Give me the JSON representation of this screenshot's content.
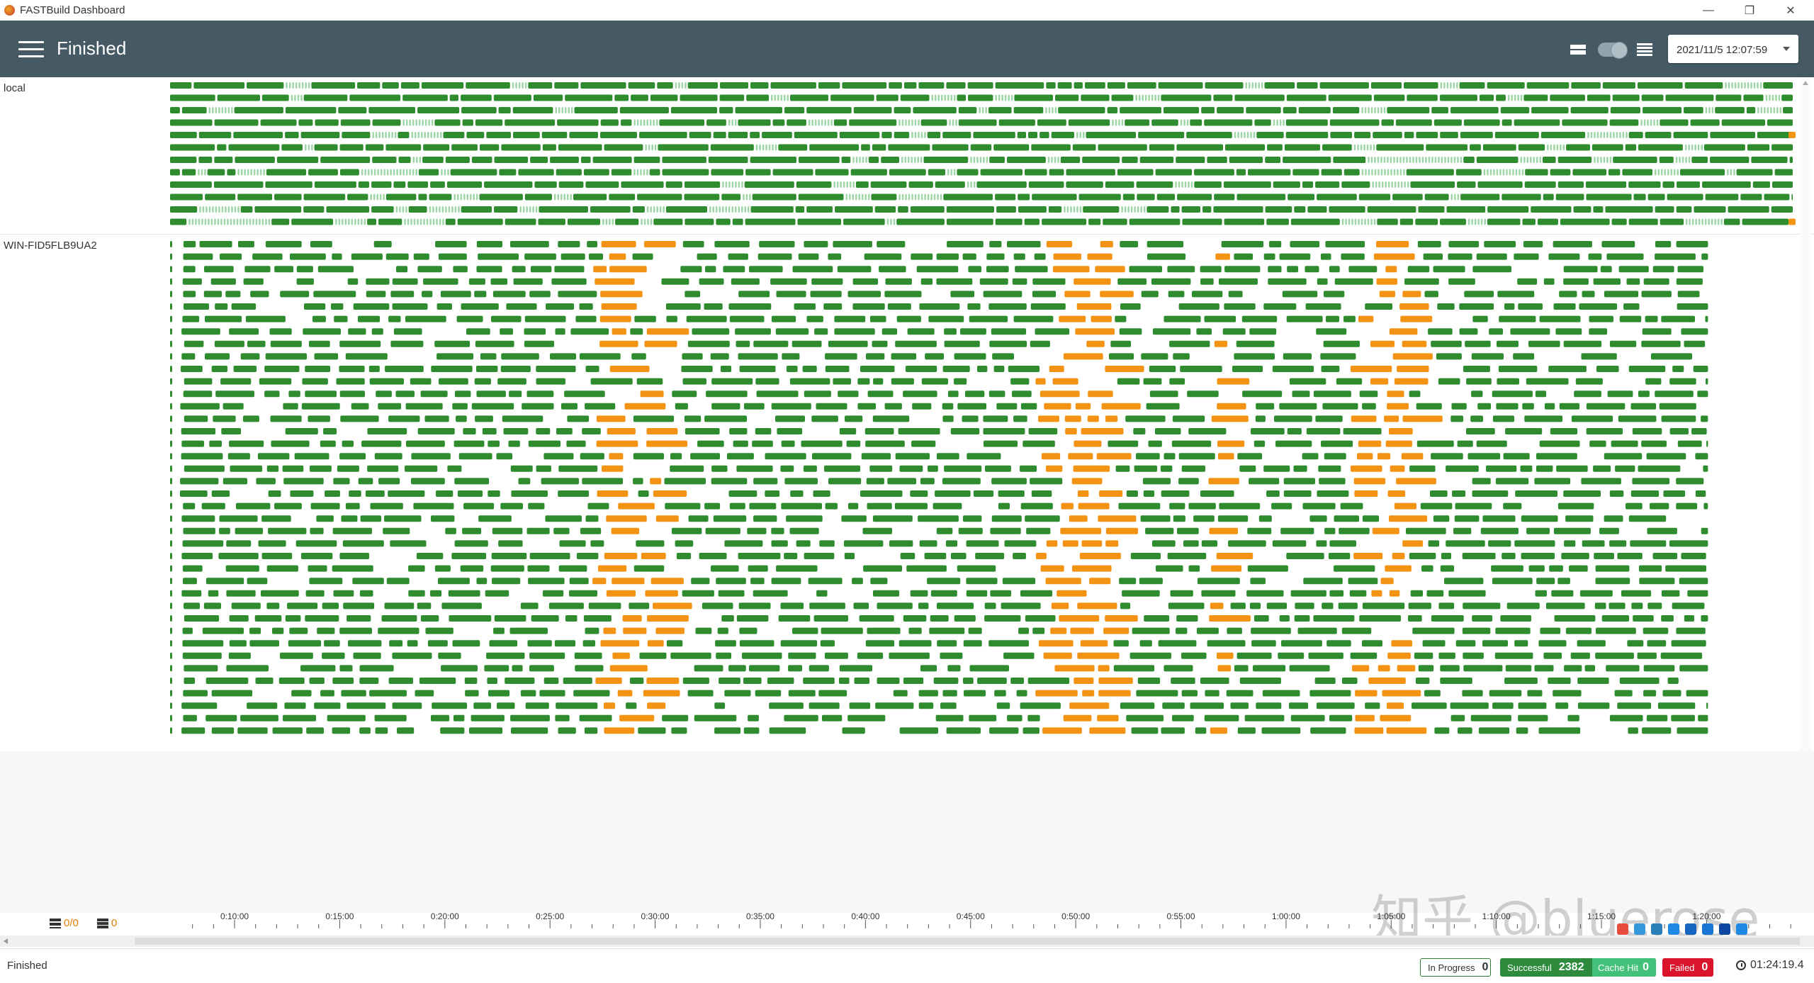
{
  "window": {
    "title": "FASTBuild Dashboard",
    "controls": [
      "—",
      "❐",
      "✕"
    ]
  },
  "header": {
    "status": "Finished",
    "datetime": "2021/11/5 12:07:59"
  },
  "workers": [
    {
      "name": "local",
      "rows": 12
    },
    {
      "name": "WIN-FID5FLB9UA2",
      "rows": 40
    }
  ],
  "colors": {
    "success": "#2e8b2e",
    "cache": "#9fd6a6",
    "running": "#f39314",
    "header": "#455a64"
  },
  "timeline": {
    "ticks": [
      "0:10:00",
      "0:15:00",
      "0:20:00",
      "0:25:00",
      "0:30:00",
      "0:35:00",
      "0:40:00",
      "0:45:00",
      "0:50:00",
      "0:55:00",
      "1:00:00",
      "1:05:00",
      "1:10:00",
      "1:15:00",
      "1:20:00"
    ],
    "range_minutes": [
      7,
      84.5
    ],
    "orange_bands_minutes": [
      [
        27.2,
        28.8
      ],
      [
        29.5,
        30.3
      ],
      [
        48.3,
        51.7
      ],
      [
        56.5,
        57.0
      ],
      [
        63.3,
        63.7
      ],
      [
        64.0,
        65.8
      ]
    ]
  },
  "counters": {
    "cores": "0/0",
    "queue": "0"
  },
  "status_bar": {
    "text": "Finished",
    "in_progress_label": "In Progress",
    "in_progress": "0",
    "successful_label": "Successful",
    "successful": "2382",
    "cache_hit_label": "Cache Hit",
    "cache_hit": "0",
    "failed_label": "Failed",
    "failed": "0",
    "elapsed": "01:24:19.4"
  },
  "watermark": "知乎 @bluerose"
}
